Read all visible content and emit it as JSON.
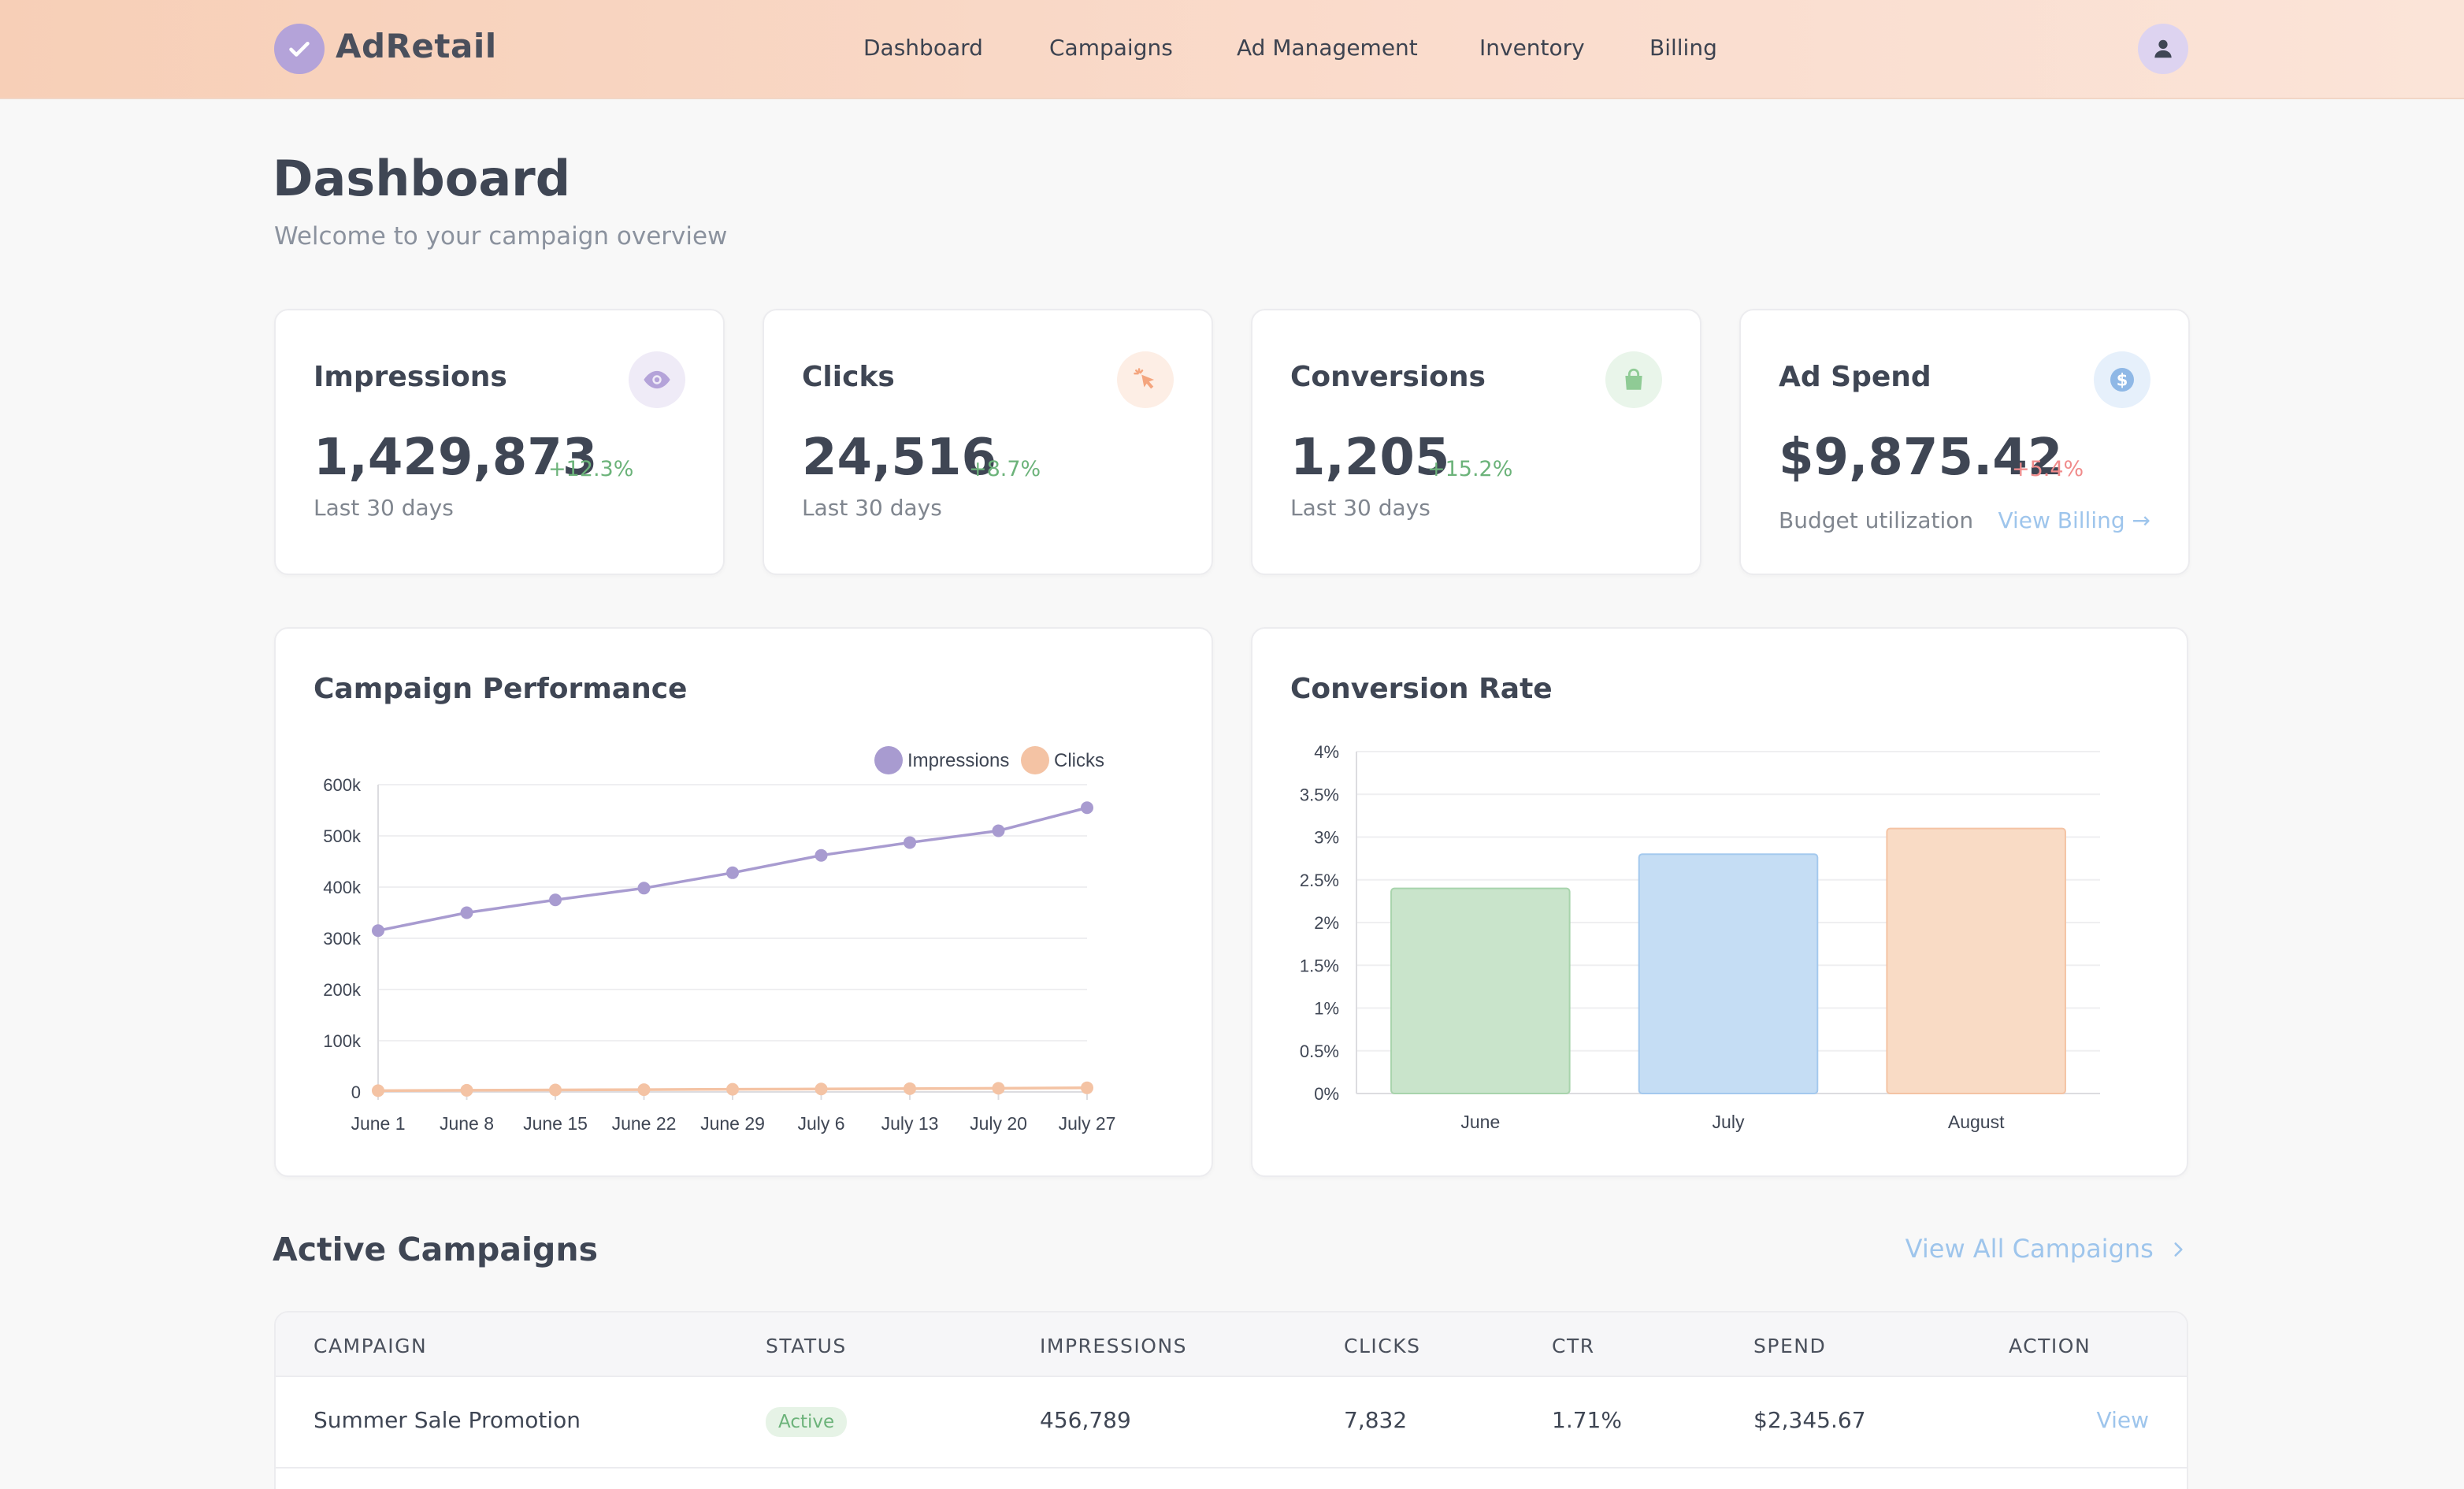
{
  "app": {
    "name": "AdRetail"
  },
  "nav": {
    "items": [
      {
        "label": "Dashboard"
      },
      {
        "label": "Campaigns"
      },
      {
        "label": "Ad Management"
      },
      {
        "label": "Inventory"
      },
      {
        "label": "Billing"
      }
    ]
  },
  "header": {
    "title": "Dashboard",
    "subtitle": "Welcome to your campaign overview"
  },
  "stats": {
    "impressions": {
      "title": "Impressions",
      "value": "1,429,873",
      "change": "+12.3%",
      "foot": "Last 30 days",
      "icon": "eye-icon",
      "color": "#b4a3d9"
    },
    "clicks": {
      "title": "Clicks",
      "value": "24,516",
      "change": "+8.7%",
      "foot": "Last 30 days",
      "icon": "cursor-click-icon",
      "color": "#f4b594"
    },
    "conversions": {
      "title": "Conversions",
      "value": "1,205",
      "change": "+15.2%",
      "foot": "Last 30 days",
      "icon": "shopping-bag-icon",
      "color": "#9fd3a3"
    },
    "ad_spend": {
      "title": "Ad Spend",
      "value": "$9,875.42",
      "change": "+5.4%",
      "foot": "Budget utilization",
      "link": "View Billing →",
      "icon": "dollar-icon",
      "color": "#8fb8e6"
    }
  },
  "colors": {
    "positive": "#6cb37a",
    "negative": "#f08b8b",
    "link": "#9ec5ec"
  },
  "charts": {
    "performance_title": "Campaign Performance",
    "conversion_title": "Conversion Rate"
  },
  "chart_data": [
    {
      "type": "line",
      "title": "Campaign Performance",
      "categories": [
        "June 1",
        "June 8",
        "June 15",
        "June 22",
        "June 29",
        "July 6",
        "July 13",
        "July 20",
        "July 27"
      ],
      "series": [
        {
          "name": "Impressions",
          "color": "#a89bd0",
          "values": [
            315000,
            350000,
            375000,
            398000,
            428000,
            462000,
            487000,
            510000,
            555000
          ]
        },
        {
          "name": "Clicks",
          "color": "#f4c3a4",
          "values": [
            2500,
            3200,
            3800,
            4500,
            5200,
            5800,
            6400,
            7100,
            8000
          ]
        }
      ],
      "yticks": [
        "0",
        "100k",
        "200k",
        "300k",
        "400k",
        "500k",
        "600k"
      ],
      "ylim": [
        0,
        600000
      ],
      "legend": "top-center"
    },
    {
      "type": "bar",
      "title": "Conversion Rate",
      "categories": [
        "June",
        "July",
        "August"
      ],
      "values": [
        2.4,
        2.8,
        3.1
      ],
      "colors": [
        "#c9e4cb",
        "#c5ddf4",
        "#f9dbc5"
      ],
      "borders": [
        "#a8d4ac",
        "#a4c9ee",
        "#f4c3a4"
      ],
      "yticks": [
        "0%",
        "0.5%",
        "1%",
        "1.5%",
        "2%",
        "2.5%",
        "3%",
        "3.5%",
        "4%"
      ],
      "ylim": [
        0,
        4
      ]
    }
  ],
  "campaigns": {
    "title": "Active Campaigns",
    "view_all": "View All Campaigns",
    "columns": [
      "CAMPAIGN",
      "STATUS",
      "IMPRESSIONS",
      "CLICKS",
      "CTR",
      "SPEND",
      "ACTION"
    ],
    "rows": [
      {
        "name": "Summer Sale Promotion",
        "status": "Active",
        "impressions": "456,789",
        "clicks": "7,832",
        "ctr": "1.71%",
        "spend": "$2,345.67",
        "action": "View"
      }
    ]
  }
}
